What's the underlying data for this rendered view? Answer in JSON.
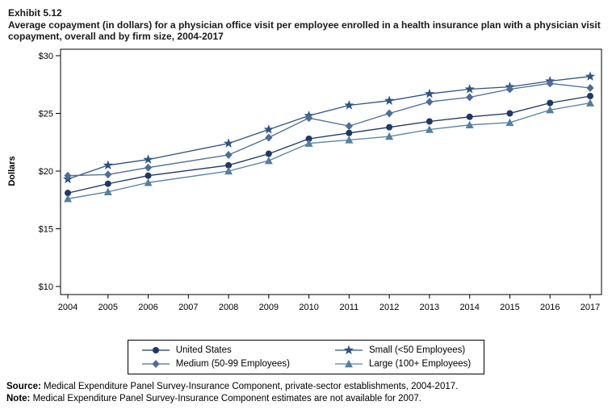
{
  "header": {
    "exhibit": "Exhibit 5.12",
    "title": "Average copayment (in dollars) for a physician office visit per employee enrolled in a health insurance plan with a physician visit copayment, overall and by firm size, 2004-2017"
  },
  "chart_data": {
    "type": "line",
    "title": "Average copayment (in dollars) for a physician office visit per employee enrolled in a health insurance plan with a physician visit copayment, overall and by firm size, 2004-2017",
    "xlabel": "",
    "ylabel": "Dollars",
    "ylim": [
      10,
      30
    ],
    "yticks": [
      10,
      15,
      20,
      25,
      30
    ],
    "ytick_labels": [
      "$10",
      "$15",
      "$20",
      "$25",
      "$30"
    ],
    "grid": false,
    "legend_position": "bottom",
    "x": [
      2004,
      2005,
      2006,
      2007,
      2008,
      2009,
      2010,
      2011,
      2012,
      2013,
      2014,
      2015,
      2016,
      2017
    ],
    "note": "Estimates not available for 2007 (no markers plotted that year)",
    "series": [
      {
        "name": "United States",
        "marker": "circle",
        "color": "#1f3864",
        "values": [
          18.1,
          18.9,
          19.6,
          null,
          20.5,
          21.5,
          22.8,
          23.3,
          23.8,
          24.3,
          24.7,
          25.0,
          25.9,
          26.5
        ]
      },
      {
        "name": "Small (<50 Employees)",
        "marker": "star",
        "color": "#2e5382",
        "values": [
          19.3,
          20.5,
          21.0,
          null,
          22.4,
          23.6,
          24.8,
          25.7,
          26.1,
          26.7,
          27.1,
          27.3,
          27.8,
          28.2
        ]
      },
      {
        "name": "Medium (50-99 Employees)",
        "marker": "diamond",
        "color": "#4d6d96",
        "values": [
          19.6,
          19.7,
          20.3,
          null,
          21.4,
          22.9,
          24.6,
          23.9,
          25.0,
          26.0,
          26.4,
          27.1,
          27.6,
          27.2
        ]
      },
      {
        "name": "Large (100+ Employees)",
        "marker": "triangle",
        "color": "#55809f",
        "values": [
          17.6,
          18.2,
          19.0,
          null,
          20.0,
          20.9,
          22.4,
          22.7,
          23.0,
          23.6,
          24.0,
          24.2,
          25.3,
          25.9
        ]
      }
    ]
  },
  "footnotes": [
    {
      "label": "Source:",
      "text": " Medical Expenditure Panel Survey-Insurance Component, private-sector establishments, 2004-2017."
    },
    {
      "label": "Note:",
      "text": " Medical Expenditure Panel Survey-Insurance Component estimates are not available for 2007."
    }
  ]
}
